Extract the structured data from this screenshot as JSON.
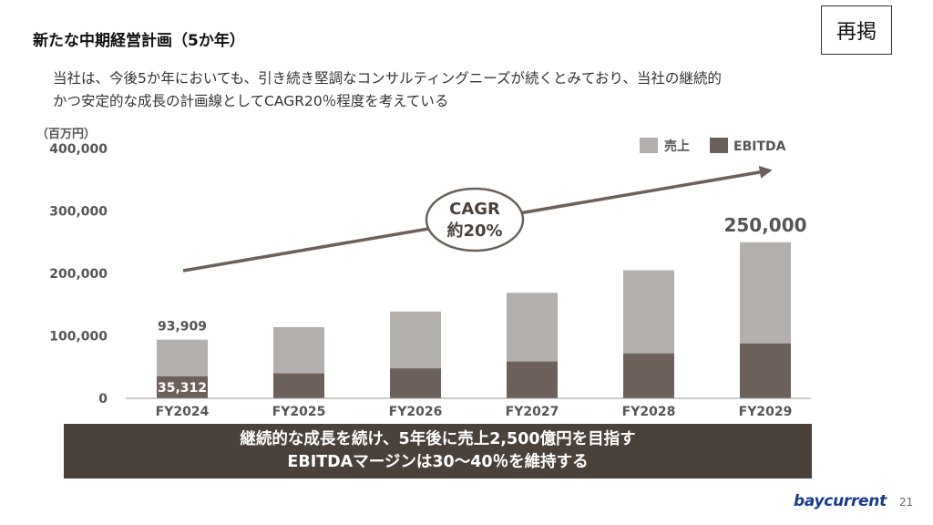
{
  "slide": {
    "title": "新たな中期経営計画（5か年）",
    "badge": "再掲",
    "description": [
      "当社は、今後5か年においても、引き続き堅調なコンサルティングニーズが続くとみており、当社の継続的",
      "かつ安定的な成長の計画線としてCAGR20％程度を考えている"
    ],
    "banner": [
      "継続的な成長を続け、5年後に売上2,500億円を目指す",
      "EBITDAマージンは30～40％を維持する"
    ],
    "logo": "baycurrent",
    "page_number": "21"
  },
  "colors": {
    "sales": "#b3afac",
    "ebitda": "#6b615a",
    "arrow": "#6b615a",
    "axis_text": "#555555",
    "banner": "#4a413b"
  },
  "chart_data": {
    "type": "bar",
    "stacked": true,
    "unit_label": "（百万円）",
    "categories": [
      "FY2024",
      "FY2025",
      "FY2026",
      "FY2027",
      "FY2028",
      "FY2029"
    ],
    "series": [
      {
        "name": "売上",
        "values": [
          93909,
          114000,
          139000,
          169000,
          205000,
          250000
        ]
      },
      {
        "name": "EBITDA",
        "values": [
          35312,
          40000,
          48000,
          59000,
          72000,
          88000
        ]
      }
    ],
    "ylim": [
      0,
      400000
    ],
    "yticks": [
      0,
      100000,
      200000,
      300000,
      400000
    ],
    "ytick_labels": [
      "0",
      "100,000",
      "200,000",
      "300,000",
      "400,000"
    ],
    "data_labels": [
      {
        "category": "FY2024",
        "series": "売上",
        "text": "93,909"
      },
      {
        "category": "FY2024",
        "series": "EBITDA",
        "text": "35,312"
      },
      {
        "category": "FY2029",
        "series": "売上",
        "text": "250,000"
      }
    ],
    "annotation": {
      "line1": "CAGR",
      "line2": "約20%"
    },
    "legend_position": "top-right",
    "grid": false
  }
}
